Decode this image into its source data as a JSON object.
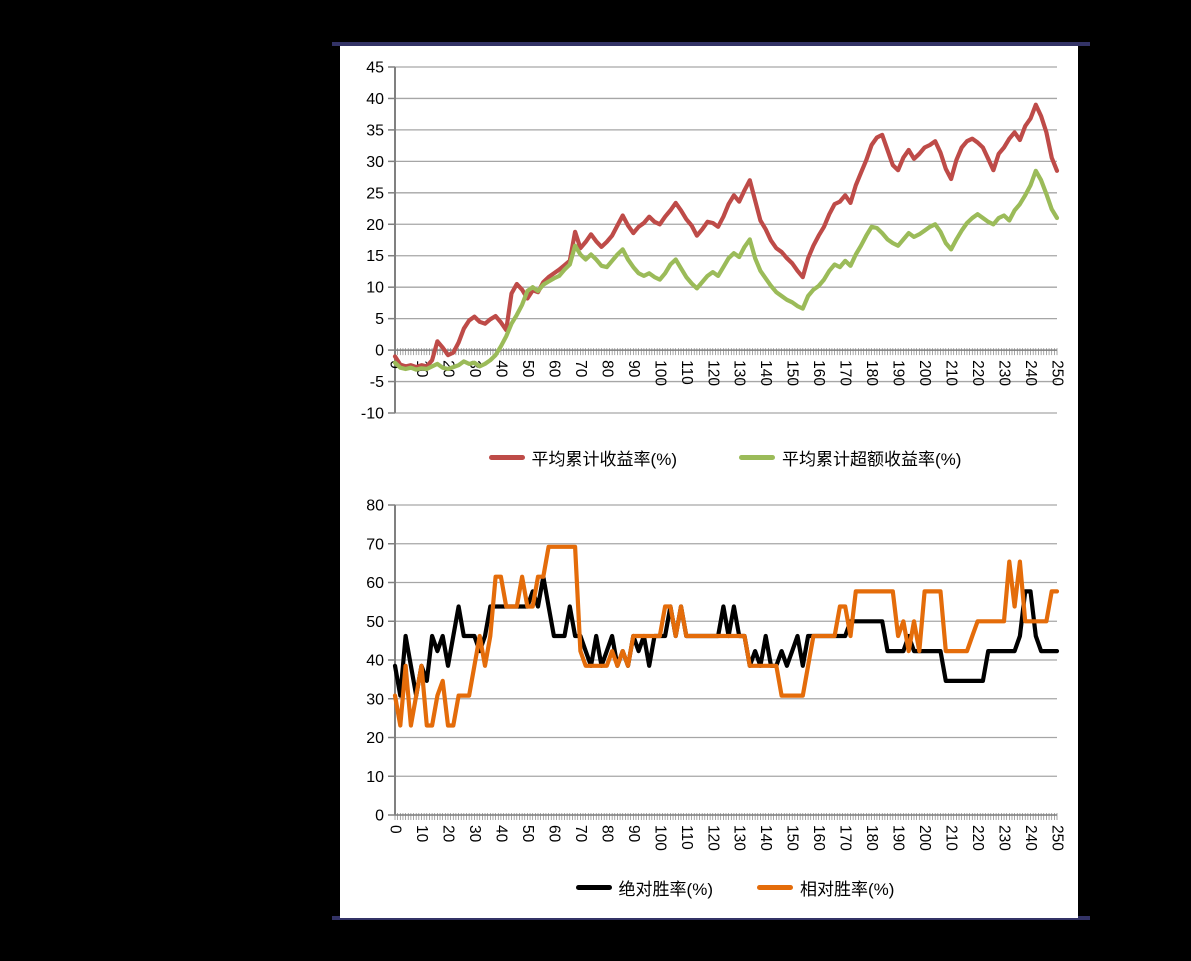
{
  "page": {
    "background_color": "#000000",
    "panel_background": "#ffffff",
    "panel_border_color": "#333366",
    "gridline_color": "#A6A6A6",
    "axis_color": "#808080",
    "text_color": "#000000"
  },
  "chart_data": [
    {
      "type": "line",
      "title": "",
      "xlabel": "",
      "ylabel": "",
      "grid": true,
      "legend_position": "bottom",
      "xlim": [
        0,
        250
      ],
      "ylim": [
        -10,
        45
      ],
      "x_step": 2,
      "x_minor_tick": 1,
      "xtick_labels": [
        "0",
        "10",
        "20",
        "30",
        "40",
        "50",
        "60",
        "70",
        "80",
        "90",
        "100",
        "110",
        "120",
        "130",
        "140",
        "150",
        "160",
        "170",
        "180",
        "190",
        "200",
        "210",
        "220",
        "230",
        "240",
        "250"
      ],
      "ytick_labels": [
        "45",
        "40",
        "35",
        "30",
        "25",
        "20",
        "15",
        "10",
        "5",
        "0",
        "-5",
        "-10"
      ],
      "series": [
        {
          "name": "平均累计收益率(%)",
          "color": "#BE4B48",
          "values": [
            -1.0,
            -2.3,
            -2.6,
            -2.4,
            -2.7,
            -2.4,
            -2.6,
            -1.6,
            1.4,
            0.4,
            -0.8,
            -0.4,
            1.2,
            3.4,
            4.7,
            5.3,
            4.5,
            4.2,
            4.9,
            5.4,
            4.4,
            3.2,
            9.0,
            10.5,
            9.6,
            8.2,
            9.5,
            9.2,
            10.8,
            11.6,
            12.2,
            12.8,
            13.5,
            14.2,
            18.8,
            16.2,
            17.2,
            18.4,
            17.3,
            16.4,
            17.2,
            18.2,
            19.8,
            21.4,
            19.8,
            18.6,
            19.6,
            20.2,
            21.2,
            20.4,
            20.0,
            21.2,
            22.2,
            23.4,
            22.2,
            20.8,
            19.8,
            18.2,
            19.2,
            20.4,
            20.2,
            19.6,
            21.2,
            23.2,
            24.6,
            23.6,
            25.4,
            27.0,
            23.8,
            20.6,
            19.2,
            17.4,
            16.2,
            15.6,
            14.6,
            13.8,
            12.6,
            11.6,
            14.6,
            16.6,
            18.2,
            19.6,
            21.6,
            23.2,
            23.6,
            24.6,
            23.4,
            26.2,
            28.2,
            30.2,
            32.6,
            33.8,
            34.2,
            31.8,
            29.4,
            28.6,
            30.6,
            31.8,
            30.4,
            31.2,
            32.2,
            32.6,
            33.2,
            31.4,
            28.8,
            27.2,
            30.2,
            32.2,
            33.2,
            33.6,
            33.0,
            32.2,
            30.4,
            28.6,
            31.2,
            32.2,
            33.6,
            34.6,
            33.4,
            35.6,
            36.8,
            39.0,
            37.2,
            34.6,
            30.6,
            28.5
          ]
        },
        {
          "name": "平均累计超额收益率(%)",
          "color": "#9BBB59",
          "values": [
            -2.0,
            -2.8,
            -3.0,
            -2.8,
            -3.1,
            -2.9,
            -3.0,
            -2.6,
            -2.2,
            -2.8,
            -3.0,
            -2.7,
            -2.4,
            -1.8,
            -2.2,
            -2.0,
            -2.6,
            -2.2,
            -1.6,
            -0.8,
            0.6,
            2.2,
            4.2,
            5.6,
            7.2,
            9.4,
            10.0,
            9.4,
            10.4,
            10.9,
            11.4,
            11.8,
            12.8,
            13.6,
            16.6,
            15.2,
            14.4,
            15.2,
            14.4,
            13.4,
            13.2,
            14.2,
            15.2,
            16.0,
            14.4,
            13.2,
            12.2,
            11.8,
            12.2,
            11.6,
            11.2,
            12.2,
            13.6,
            14.4,
            13.0,
            11.6,
            10.6,
            9.8,
            10.8,
            11.8,
            12.4,
            11.8,
            13.2,
            14.6,
            15.4,
            14.8,
            16.4,
            17.6,
            14.6,
            12.6,
            11.4,
            10.2,
            9.2,
            8.6,
            8.0,
            7.6,
            7.0,
            6.6,
            8.6,
            9.6,
            10.2,
            11.2,
            12.6,
            13.6,
            13.2,
            14.2,
            13.4,
            15.2,
            16.6,
            18.2,
            19.6,
            19.4,
            18.6,
            17.6,
            17.0,
            16.6,
            17.6,
            18.6,
            18.0,
            18.4,
            19.0,
            19.6,
            20.0,
            18.8,
            17.0,
            16.0,
            17.6,
            19.0,
            20.2,
            21.0,
            21.6,
            21.0,
            20.4,
            20.0,
            21.0,
            21.4,
            20.6,
            22.2,
            23.2,
            24.6,
            26.2,
            28.5,
            27.0,
            24.8,
            22.4,
            21.0
          ]
        }
      ]
    },
    {
      "type": "line",
      "title": "",
      "xlabel": "",
      "ylabel": "",
      "grid": true,
      "legend_position": "bottom",
      "xlim": [
        0,
        250
      ],
      "ylim": [
        0,
        80
      ],
      "x_step": 2,
      "x_minor_tick": 1,
      "xtick_labels": [
        "0",
        "10",
        "20",
        "30",
        "40",
        "50",
        "60",
        "70",
        "80",
        "90",
        "100",
        "110",
        "120",
        "130",
        "140",
        "150",
        "160",
        "170",
        "180",
        "190",
        "200",
        "210",
        "220",
        "230",
        "240",
        "250"
      ],
      "ytick_labels": [
        "80",
        "70",
        "60",
        "50",
        "40",
        "30",
        "20",
        "10",
        "0"
      ],
      "series": [
        {
          "name": "绝对胜率(%)",
          "color": "#000000",
          "values": [
            38.5,
            30.8,
            46.2,
            38.5,
            30.8,
            38.5,
            34.6,
            46.2,
            42.3,
            46.2,
            38.5,
            46.2,
            53.8,
            46.2,
            46.2,
            46.2,
            42.3,
            46.2,
            53.8,
            53.8,
            53.8,
            53.8,
            53.8,
            53.8,
            53.8,
            53.8,
            57.7,
            53.8,
            61.5,
            53.8,
            46.2,
            46.2,
            46.2,
            53.8,
            46.2,
            46.2,
            42.3,
            38.5,
            46.2,
            38.5,
            42.3,
            46.2,
            38.5,
            42.3,
            38.5,
            46.2,
            42.3,
            46.2,
            38.5,
            46.2,
            46.2,
            46.2,
            53.8,
            46.2,
            53.8,
            46.2,
            46.2,
            46.2,
            46.2,
            46.2,
            46.2,
            46.2,
            53.8,
            46.2,
            53.8,
            46.2,
            46.2,
            38.5,
            42.3,
            38.5,
            46.2,
            38.5,
            38.5,
            42.3,
            38.5,
            42.3,
            46.2,
            38.5,
            46.2,
            46.2,
            46.2,
            46.2,
            46.2,
            46.2,
            46.2,
            46.2,
            50.0,
            50.0,
            50.0,
            50.0,
            50.0,
            50.0,
            50.0,
            42.3,
            42.3,
            42.3,
            42.3,
            46.2,
            42.3,
            42.3,
            42.3,
            42.3,
            42.3,
            42.3,
            34.6,
            34.6,
            34.6,
            34.6,
            34.6,
            34.6,
            34.6,
            34.6,
            42.3,
            42.3,
            42.3,
            42.3,
            42.3,
            42.3,
            46.2,
            57.7,
            57.7,
            46.2,
            42.3,
            42.3,
            42.3,
            42.3
          ]
        },
        {
          "name": "相对胜率(%)",
          "color": "#E46C0A",
          "values": [
            30.8,
            23.1,
            38.5,
            23.1,
            30.8,
            38.5,
            23.1,
            23.1,
            30.8,
            34.6,
            23.1,
            23.1,
            30.8,
            30.8,
            30.8,
            38.5,
            46.2,
            38.5,
            46.2,
            61.5,
            61.5,
            53.8,
            53.8,
            53.8,
            61.5,
            53.8,
            53.8,
            61.5,
            61.5,
            69.2,
            69.2,
            69.2,
            69.2,
            69.2,
            69.2,
            42.3,
            38.5,
            38.5,
            38.5,
            38.5,
            38.5,
            42.3,
            38.5,
            42.3,
            38.5,
            46.2,
            46.2,
            46.2,
            46.2,
            46.2,
            46.2,
            53.8,
            53.8,
            46.2,
            53.8,
            46.2,
            46.2,
            46.2,
            46.2,
            46.2,
            46.2,
            46.2,
            46.2,
            46.2,
            46.2,
            46.2,
            46.2,
            38.5,
            38.5,
            38.5,
            38.5,
            38.5,
            38.5,
            30.8,
            30.8,
            30.8,
            30.8,
            30.8,
            38.5,
            46.2,
            46.2,
            46.2,
            46.2,
            46.2,
            53.8,
            53.8,
            46.2,
            57.7,
            57.7,
            57.7,
            57.7,
            57.7,
            57.7,
            57.7,
            57.7,
            46.2,
            50.0,
            42.3,
            50.0,
            42.3,
            57.7,
            57.7,
            57.7,
            57.7,
            42.3,
            42.3,
            42.3,
            42.3,
            42.3,
            46.2,
            50.0,
            50.0,
            50.0,
            50.0,
            50.0,
            50.0,
            65.4,
            53.8,
            65.4,
            50.0,
            50.0,
            50.0,
            50.0,
            50.0,
            57.7,
            57.7
          ]
        }
      ]
    }
  ]
}
